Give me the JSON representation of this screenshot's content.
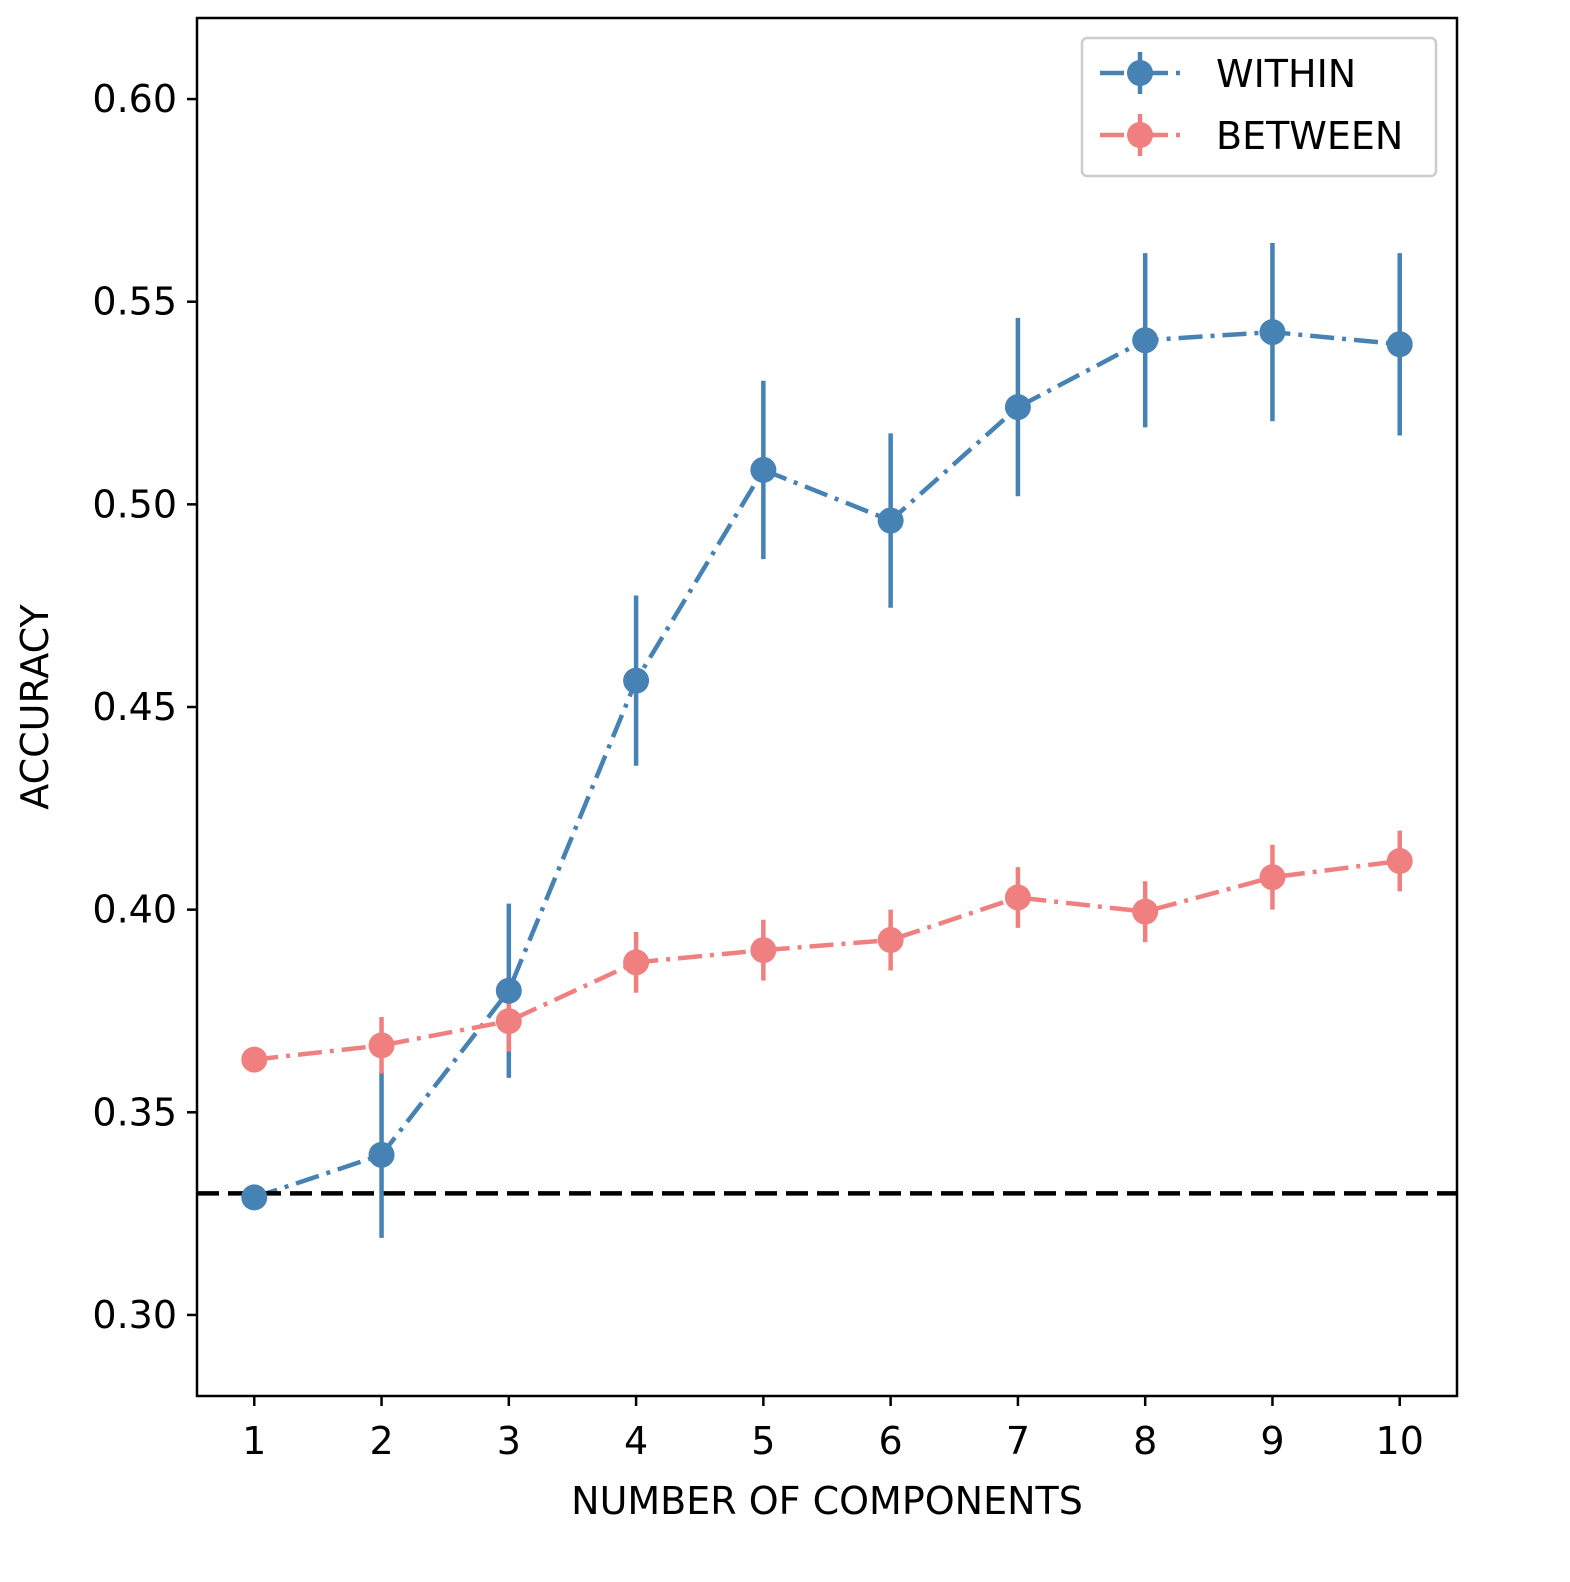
{
  "chart_data": {
    "type": "line",
    "xlabel": "NUMBER OF COMPONENTS",
    "ylabel": "ACCURACY",
    "x": [
      1,
      2,
      3,
      4,
      5,
      6,
      7,
      8,
      9,
      10
    ],
    "xticks": [
      "1",
      "2",
      "3",
      "4",
      "5",
      "6",
      "7",
      "8",
      "9",
      "10"
    ],
    "yticks": [
      "0.30",
      "0.35",
      "0.40",
      "0.45",
      "0.50",
      "0.55",
      "0.60"
    ],
    "xlim": [
      0.55,
      10.45
    ],
    "ylim": [
      0.28,
      0.62
    ],
    "grid": false,
    "legend_position": "top-right",
    "series": [
      {
        "name": "WITHIN",
        "color": "#4682b4",
        "line_style": "dash-dot",
        "values": [
          0.329,
          0.3395,
          0.38,
          0.4565,
          0.5085,
          0.496,
          0.524,
          0.5405,
          0.5425,
          0.5395
        ],
        "errors": [
          0.0,
          0.0205,
          0.0215,
          0.021,
          0.022,
          0.0215,
          0.022,
          0.0215,
          0.022,
          0.0225
        ]
      },
      {
        "name": "BETWEEN",
        "color": "#f08080",
        "line_style": "dash-dot",
        "values": [
          0.363,
          0.3665,
          0.3725,
          0.387,
          0.39,
          0.3925,
          0.403,
          0.3995,
          0.408,
          0.412
        ],
        "errors": [
          0.0,
          0.007,
          0.0075,
          0.0075,
          0.0075,
          0.0075,
          0.0075,
          0.0075,
          0.008,
          0.0075
        ]
      }
    ],
    "reference_line": {
      "y": 0.33,
      "color": "#000000",
      "style": "dashed"
    }
  }
}
